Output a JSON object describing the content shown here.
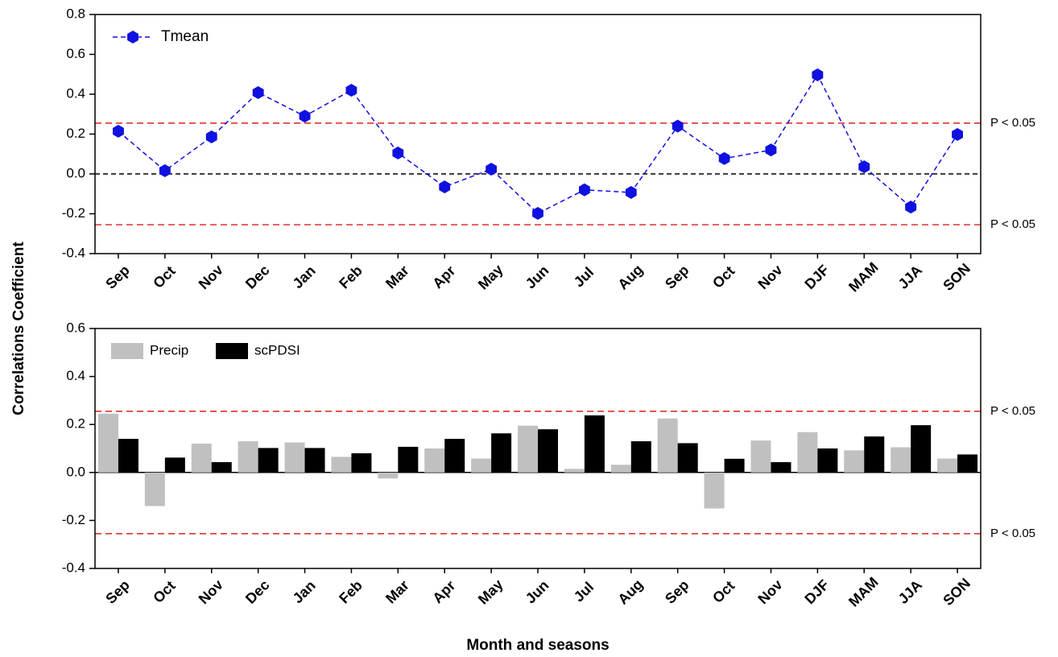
{
  "ylabel": "Correlations Coefficient",
  "xlabel": "Month and seasons",
  "chart_data": [
    {
      "type": "line",
      "legend": "upper left",
      "zero_line": "dashed",
      "categories": [
        "Sep",
        "Oct",
        "Nov",
        "Dec",
        "Jan",
        "Feb",
        "Mar",
        "Apr",
        "May",
        "Jun",
        "Jul",
        "Aug",
        "Sep",
        "Oct",
        "Nov",
        "DJF",
        "MAM",
        "JJA",
        "SON"
      ],
      "series": [
        {
          "name": "Tmean",
          "color": "#1010e0",
          "values": [
            0.214,
            0.016,
            0.186,
            0.408,
            0.29,
            0.42,
            0.105,
            -0.065,
            0.024,
            -0.198,
            -0.08,
            -0.093,
            0.24,
            0.077,
            0.12,
            0.497,
            0.036,
            -0.166,
            0.198
          ]
        }
      ],
      "ylim": [
        -0.4,
        0.8
      ],
      "yticks": [
        -0.4,
        -0.2,
        {
          "value": 0,
          "label": "0.0"
        },
        0.2,
        0.4,
        0.6,
        0.8
      ],
      "threshold_lines": [
        {
          "value": 0.255,
          "label": "P < 0.05"
        },
        {
          "value": -0.255,
          "label": "P < 0.05"
        }
      ]
    },
    {
      "type": "bar",
      "legend": "upper left",
      "zero_line": "solid",
      "categories": [
        "Sep",
        "Oct",
        "Nov",
        "Dec",
        "Jan",
        "Feb",
        "Mar",
        "Apr",
        "May",
        "Jun",
        "Jul",
        "Aug",
        "Sep",
        "Oct",
        "Nov",
        "DJF",
        "MAM",
        "JJA",
        "SON"
      ],
      "series": [
        {
          "name": "Precip",
          "color": "#c0c0c0",
          "values": [
            0.245,
            -0.14,
            0.12,
            0.13,
            0.125,
            0.065,
            -0.025,
            0.1,
            0.058,
            0.195,
            0.015,
            0.032,
            0.225,
            -0.15,
            0.133,
            0.168,
            0.092,
            0.105,
            0.058
          ]
        },
        {
          "name": "scPDSI",
          "color": "#000000",
          "values": [
            0.14,
            0.062,
            0.043,
            0.102,
            0.102,
            0.08,
            0.107,
            0.14,
            0.163,
            0.18,
            0.238,
            0.13,
            0.122,
            0.057,
            0.043,
            0.1,
            0.15,
            0.197,
            0.075
          ]
        }
      ],
      "ylim": [
        -0.4,
        0.6
      ],
      "yticks": [
        -0.4,
        -0.2,
        {
          "value": 0,
          "label": "0.0"
        },
        0.2,
        0.4,
        0.6
      ],
      "threshold_lines": [
        {
          "value": 0.255,
          "label": "P < 0.05"
        },
        {
          "value": -0.255,
          "label": "P < 0.05"
        }
      ]
    }
  ]
}
